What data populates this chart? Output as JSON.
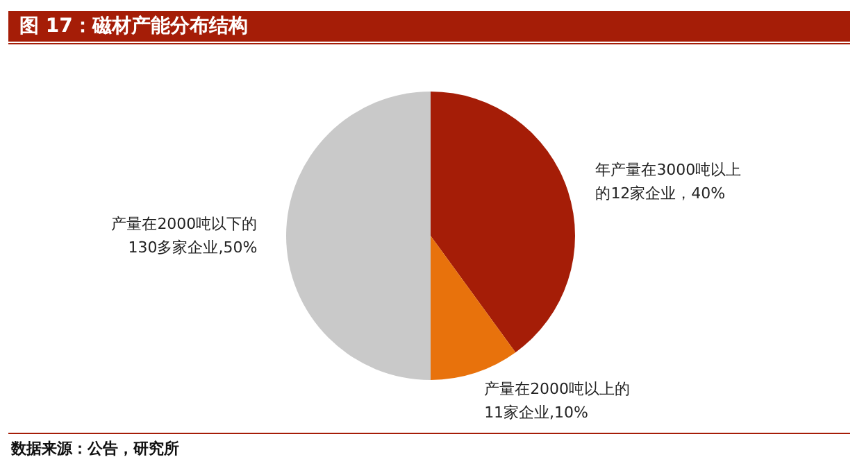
{
  "chart_data": {
    "type": "pie",
    "title": "图 17：磁材产能分布结构",
    "categories": [
      "年产量在3000吨以上的12家企业，40%",
      "产量在2000吨以上的11家企业,10%",
      "产量在2000吨以下的130多家企业,50%"
    ],
    "values": [
      40,
      10,
      50
    ],
    "colors": [
      "#a51d07",
      "#e8720c",
      "#c9c9c9"
    ],
    "legend": false,
    "annotations": [
      "数据来源：公告，研究所"
    ]
  }
}
